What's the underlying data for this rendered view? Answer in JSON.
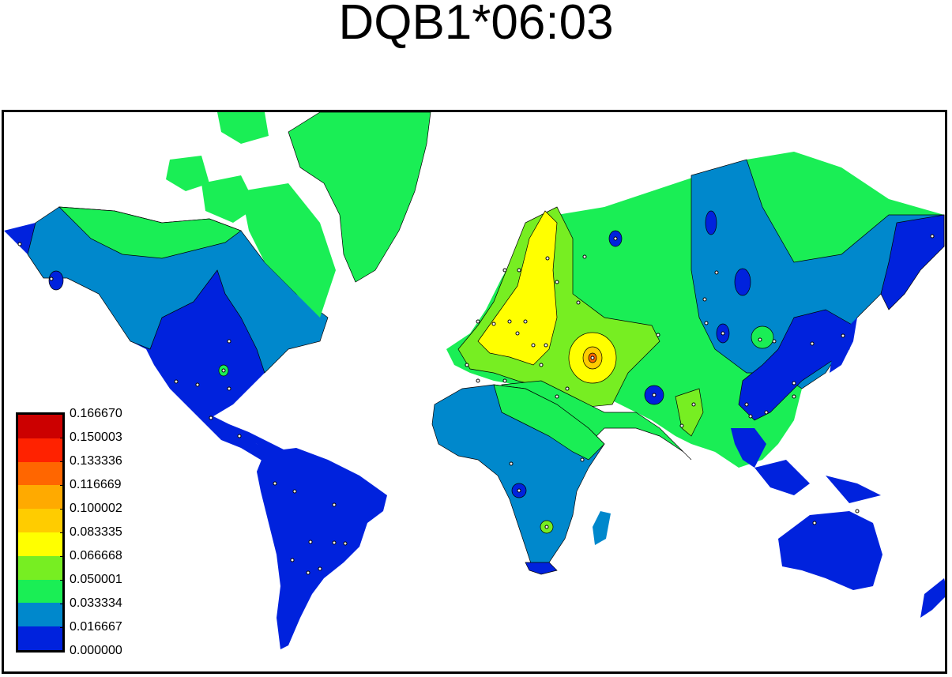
{
  "title": "DQB1*06:03",
  "colors": {
    "c0": "#0022dd",
    "c1": "#0088cc",
    "c2": "#1aee55",
    "c3": "#77ee22",
    "c4": "#ffff00",
    "c5": "#ffcc00",
    "c6": "#ffaa00",
    "c7": "#ff6600",
    "c8": "#ff2200",
    "c9": "#cc0000"
  },
  "legend": {
    "labels": [
      "0.166670",
      "0.150003",
      "0.133336",
      "0.116669",
      "0.100002",
      "0.083335",
      "0.066668",
      "0.050001",
      "0.033334",
      "0.016667",
      "0.000000"
    ],
    "swatches": [
      "#cc0000",
      "#ff2200",
      "#ff6600",
      "#ffaa00",
      "#ffcc00",
      "#ffff00",
      "#77ee22",
      "#1aee55",
      "#0088cc",
      "#0022dd"
    ]
  }
}
